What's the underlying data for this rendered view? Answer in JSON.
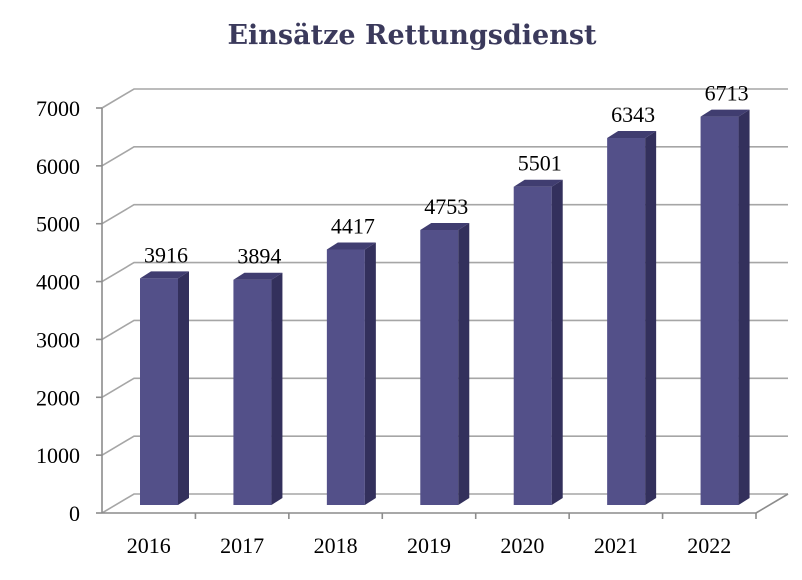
{
  "chart_data": {
    "type": "bar",
    "title": "Einsätze Rettungsdienst",
    "categories": [
      "2016",
      "2017",
      "2018",
      "2019",
      "2020",
      "2021",
      "2022"
    ],
    "values": [
      3916,
      3894,
      4417,
      4753,
      5501,
      6343,
      6713
    ],
    "ylim": [
      0,
      7000
    ],
    "yticks": [
      "0",
      "1000",
      "2000",
      "3000",
      "4000",
      "5000",
      "6000",
      "7000"
    ],
    "xlabel": "",
    "ylabel": "",
    "grid": true,
    "legend": "none",
    "style": "3d",
    "colors": {
      "bar_front": "#535089",
      "bar_side": "#33305c",
      "bar_top": "#403d70"
    }
  }
}
